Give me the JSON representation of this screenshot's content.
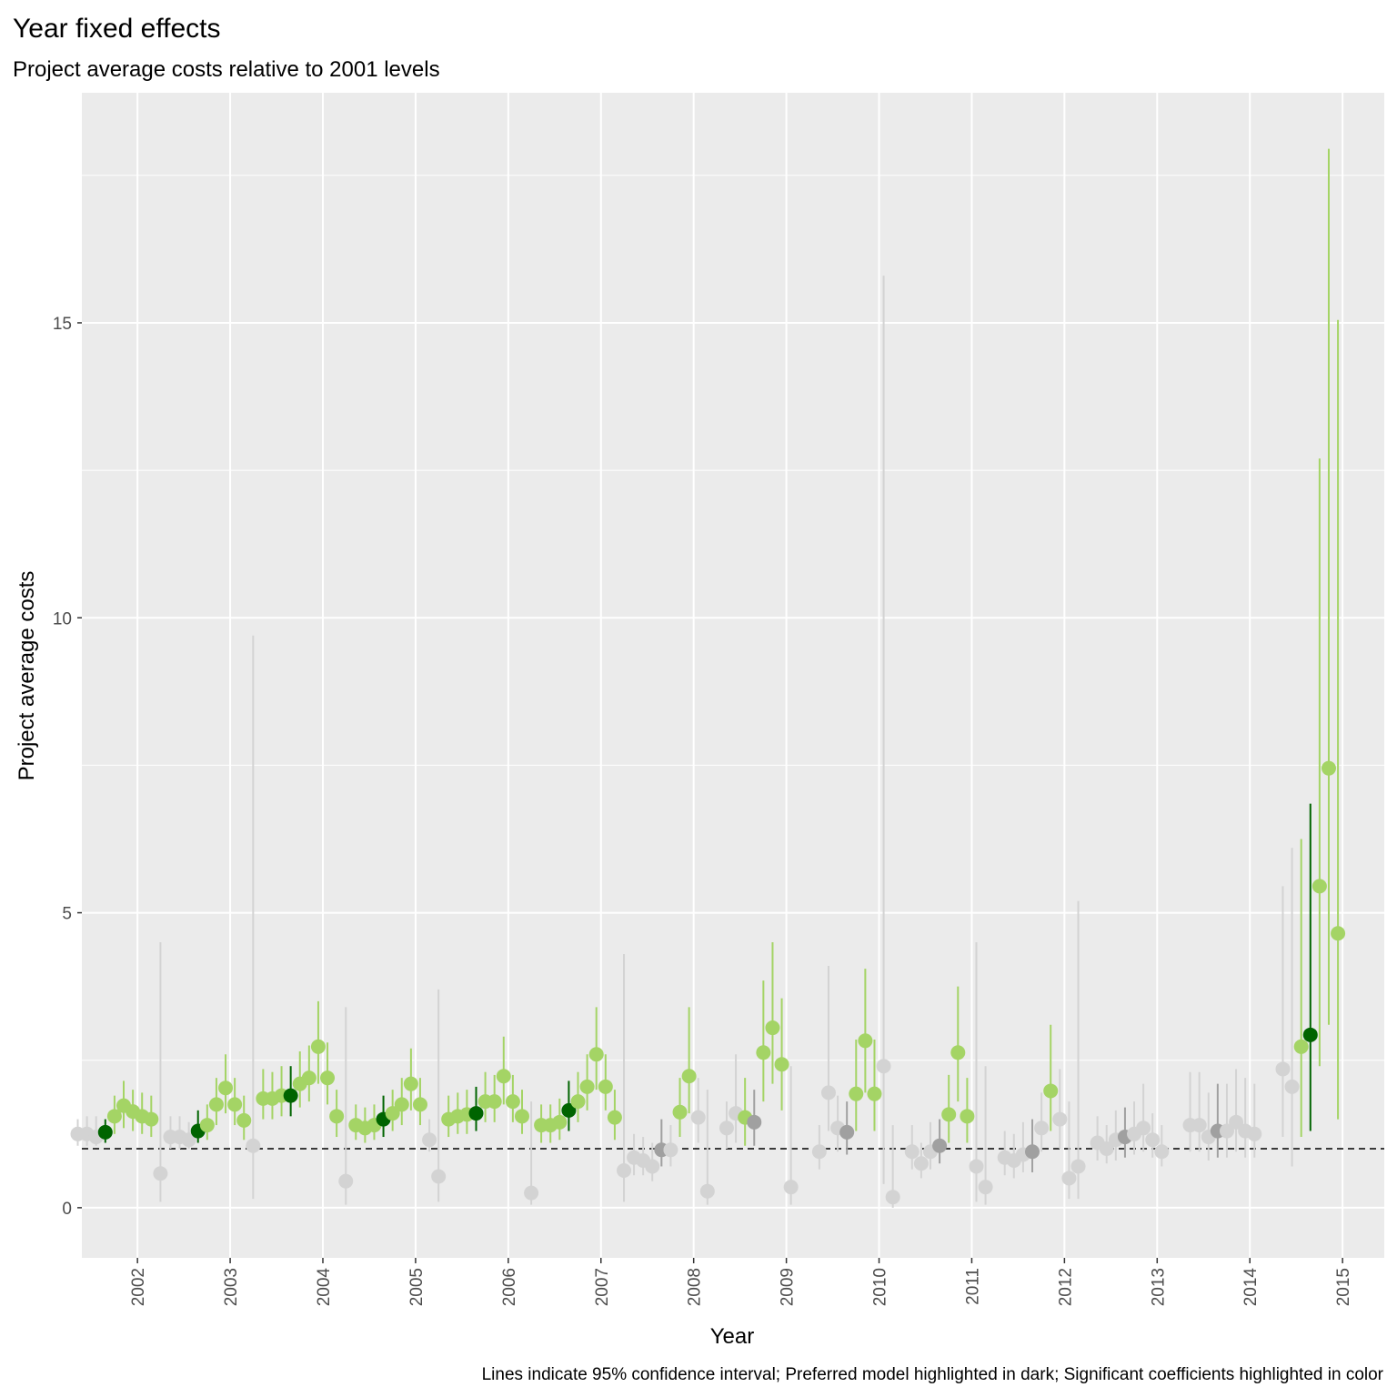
{
  "chart_data": {
    "type": "scatter",
    "title": "Year fixed effects",
    "subtitle": "Project average costs relative to 2001 levels",
    "xlabel": "Year",
    "ylabel": "Project average costs",
    "caption": "Lines indicate 95% confidence interval; Preferred model highlighted in dark; Significant coefficients highlighted in color",
    "categories": [
      "2002",
      "2003",
      "2004",
      "2005",
      "2006",
      "2007",
      "2008",
      "2009",
      "2010",
      "2011",
      "2012",
      "2013",
      "2014",
      "2015"
    ],
    "ylim": [
      -0.85,
      18.9
    ],
    "yticks": [
      0,
      5,
      10,
      15
    ],
    "y_minor_ticks": [
      2.5,
      7.5,
      12.5,
      17.5
    ],
    "reference_line": 1,
    "grid": true,
    "points_per_year": 14,
    "preferred_model_index": 3,
    "colors": {
      "panel": "#ebebeb",
      "grid": "#ffffff",
      "significant": "#a4d465",
      "preferred_significant": "#006400",
      "not_significant": "#d3d3d3",
      "preferred_not_significant": "#a0a0a0",
      "reference": "#000000"
    },
    "estimates": [
      {
        "year": "2002",
        "values": [
          [
            1.25,
            1.05,
            1.5,
            false
          ],
          [
            1.25,
            1.05,
            1.55,
            false
          ],
          [
            1.2,
            1.05,
            1.55,
            false
          ],
          [
            1.28,
            1.1,
            1.5,
            true
          ],
          [
            1.55,
            1.25,
            1.9,
            true
          ],
          [
            1.73,
            1.35,
            2.15,
            true
          ],
          [
            1.63,
            1.3,
            2.0,
            true
          ],
          [
            1.55,
            1.25,
            1.95,
            true
          ],
          [
            1.5,
            1.2,
            1.9,
            true
          ],
          [
            0.58,
            0.1,
            4.5,
            false
          ],
          null,
          null,
          null,
          null
        ]
      },
      {
        "year": "2003",
        "values": [
          [
            1.2,
            1.0,
            1.55,
            false
          ],
          [
            1.2,
            1.0,
            1.55,
            false
          ],
          [
            1.15,
            1.0,
            1.45,
            false
          ],
          [
            1.3,
            1.1,
            1.65,
            true
          ],
          [
            1.4,
            1.15,
            1.75,
            true
          ],
          [
            1.75,
            1.4,
            2.2,
            true
          ],
          [
            2.03,
            1.6,
            2.6,
            true
          ],
          [
            1.75,
            1.4,
            2.2,
            true
          ],
          [
            1.48,
            1.15,
            1.9,
            true
          ],
          [
            1.05,
            0.15,
            9.7,
            false
          ],
          null,
          null,
          null,
          null
        ]
      },
      {
        "year": "2004",
        "values": [
          [
            1.85,
            1.5,
            2.35,
            true
          ],
          [
            1.85,
            1.5,
            2.3,
            true
          ],
          [
            1.9,
            1.55,
            2.4,
            true
          ],
          [
            1.9,
            1.55,
            2.4,
            true
          ],
          [
            2.1,
            1.7,
            2.65,
            true
          ],
          [
            2.2,
            1.8,
            2.75,
            true
          ],
          [
            2.73,
            2.1,
            3.5,
            true
          ],
          [
            2.2,
            1.75,
            2.8,
            true
          ],
          [
            1.55,
            1.2,
            2.0,
            true
          ],
          [
            0.45,
            0.05,
            3.4,
            false
          ],
          null,
          null,
          null,
          null
        ]
      },
      {
        "year": "2005",
        "values": [
          [
            1.4,
            1.15,
            1.75,
            true
          ],
          [
            1.35,
            1.1,
            1.7,
            true
          ],
          [
            1.4,
            1.15,
            1.75,
            true
          ],
          [
            1.5,
            1.2,
            1.9,
            true
          ],
          [
            1.6,
            1.3,
            2.0,
            true
          ],
          [
            1.75,
            1.4,
            2.2,
            true
          ],
          [
            2.1,
            1.65,
            2.7,
            true
          ],
          [
            1.75,
            1.4,
            2.2,
            true
          ],
          [
            1.15,
            0.95,
            1.5,
            false
          ],
          [
            0.53,
            0.1,
            3.7,
            false
          ],
          null,
          null,
          null,
          null
        ]
      },
      {
        "year": "2006",
        "values": [
          [
            1.5,
            1.2,
            1.9,
            true
          ],
          [
            1.55,
            1.25,
            1.95,
            true
          ],
          [
            1.58,
            1.25,
            2.0,
            true
          ],
          [
            1.6,
            1.3,
            2.05,
            true
          ],
          [
            1.8,
            1.45,
            2.3,
            true
          ],
          [
            1.8,
            1.45,
            2.25,
            true
          ],
          [
            2.23,
            1.75,
            2.9,
            true
          ],
          [
            1.8,
            1.45,
            2.25,
            true
          ],
          [
            1.55,
            1.25,
            2.0,
            true
          ],
          [
            0.25,
            0.05,
            1.8,
            false
          ],
          null,
          null,
          null,
          null
        ]
      },
      {
        "year": "2007",
        "values": [
          [
            1.4,
            1.1,
            1.75,
            true
          ],
          [
            1.4,
            1.1,
            1.75,
            true
          ],
          [
            1.45,
            1.15,
            1.85,
            true
          ],
          [
            1.65,
            1.3,
            2.15,
            true
          ],
          [
            1.8,
            1.45,
            2.3,
            true
          ],
          [
            2.05,
            1.65,
            2.6,
            true
          ],
          [
            2.6,
            2.0,
            3.4,
            true
          ],
          [
            2.05,
            1.65,
            2.6,
            true
          ],
          [
            1.53,
            1.15,
            2.0,
            true
          ],
          [
            0.63,
            0.1,
            4.3,
            false
          ],
          null,
          null,
          null,
          null
        ]
      },
      {
        "year": "2008",
        "values": [
          [
            0.85,
            0.55,
            1.25,
            false
          ],
          [
            0.8,
            0.55,
            1.2,
            false
          ],
          [
            0.7,
            0.45,
            1.1,
            false
          ],
          [
            0.98,
            0.7,
            1.5,
            false
          ],
          [
            0.98,
            0.7,
            1.4,
            false
          ],
          [
            1.62,
            1.2,
            2.2,
            true
          ],
          [
            2.23,
            1.6,
            3.4,
            true
          ],
          [
            1.53,
            1.1,
            2.2,
            false
          ],
          [
            0.28,
            0.05,
            2.0,
            false
          ],
          null,
          null,
          null,
          null,
          null
        ]
      },
      {
        "year": "2009",
        "values": [
          [
            1.35,
            1.0,
            1.8,
            false
          ],
          [
            1.6,
            1.1,
            2.6,
            false
          ],
          [
            1.53,
            1.05,
            2.2,
            true
          ],
          [
            1.45,
            1.05,
            2.0,
            false
          ],
          [
            2.63,
            1.8,
            3.85,
            true
          ],
          [
            3.05,
            2.1,
            4.5,
            true
          ],
          [
            2.43,
            1.65,
            3.55,
            true
          ],
          [
            0.35,
            0.05,
            2.4,
            false
          ],
          null,
          null,
          null,
          null,
          null,
          null
        ]
      },
      {
        "year": "2010",
        "values": [
          [
            0.95,
            0.65,
            1.4,
            false
          ],
          [
            1.95,
            1.3,
            4.1,
            false
          ],
          [
            1.35,
            0.95,
            1.9,
            false
          ],
          [
            1.28,
            0.9,
            1.8,
            false
          ],
          [
            1.93,
            1.3,
            2.85,
            true
          ],
          [
            2.83,
            1.95,
            4.05,
            true
          ],
          [
            1.93,
            1.3,
            2.85,
            true
          ],
          [
            2.4,
            0.4,
            15.8,
            false
          ],
          [
            0.18,
            0.0,
            1.4,
            false
          ],
          null,
          null,
          null,
          null,
          null
        ]
      },
      {
        "year": "2011",
        "values": [
          [
            0.95,
            0.65,
            1.4,
            false
          ],
          [
            0.75,
            0.5,
            1.1,
            false
          ],
          [
            0.95,
            0.65,
            1.45,
            false
          ],
          [
            1.05,
            0.75,
            1.5,
            false
          ],
          [
            1.58,
            1.1,
            2.25,
            true
          ],
          [
            2.63,
            1.8,
            3.75,
            true
          ],
          [
            1.55,
            1.1,
            2.2,
            true
          ],
          [
            0.7,
            0.1,
            4.5,
            false
          ],
          [
            0.35,
            0.05,
            2.4,
            false
          ],
          null,
          null,
          null,
          null,
          null
        ]
      },
      {
        "year": "2012",
        "values": [
          [
            0.85,
            0.55,
            1.3,
            false
          ],
          [
            0.8,
            0.5,
            1.25,
            false
          ],
          [
            0.9,
            0.6,
            1.45,
            false
          ],
          [
            0.95,
            0.6,
            1.5,
            false
          ],
          [
            1.35,
            0.95,
            1.95,
            false
          ],
          [
            1.98,
            1.3,
            3.1,
            true
          ],
          [
            1.5,
            1.0,
            2.35,
            false
          ],
          [
            0.5,
            0.15,
            1.8,
            false
          ],
          [
            0.7,
            0.15,
            5.2,
            false
          ],
          null,
          null,
          null,
          null,
          null
        ]
      },
      {
        "year": "2013",
        "values": [
          [
            1.1,
            0.8,
            1.55,
            false
          ],
          [
            1.0,
            0.75,
            1.4,
            false
          ],
          [
            1.15,
            0.8,
            1.65,
            false
          ],
          [
            1.2,
            0.85,
            1.7,
            false
          ],
          [
            1.25,
            0.9,
            1.8,
            false
          ],
          [
            1.35,
            0.95,
            2.1,
            false
          ],
          [
            1.15,
            0.85,
            1.6,
            false
          ],
          [
            0.95,
            0.7,
            1.4,
            false
          ],
          null,
          null,
          null,
          null,
          null,
          null
        ]
      },
      {
        "year": "2014",
        "values": [
          [
            1.4,
            0.95,
            2.3,
            false
          ],
          [
            1.4,
            0.95,
            2.3,
            false
          ],
          [
            1.2,
            0.8,
            1.95,
            false
          ],
          [
            1.3,
            0.85,
            2.1,
            false
          ],
          [
            1.3,
            0.85,
            2.1,
            false
          ],
          [
            1.45,
            0.95,
            2.35,
            false
          ],
          [
            1.3,
            0.85,
            2.2,
            false
          ],
          [
            1.25,
            0.85,
            2.1,
            false
          ],
          null,
          null,
          null,
          null,
          null,
          null
        ]
      },
      {
        "year": "2015",
        "values": [
          [
            2.35,
            1.2,
            5.45,
            false
          ],
          [
            2.05,
            0.7,
            6.1,
            false
          ],
          [
            2.73,
            1.2,
            6.25,
            true
          ],
          [
            2.93,
            1.3,
            6.85,
            true
          ],
          [
            5.45,
            2.4,
            12.7,
            true
          ],
          [
            7.45,
            3.1,
            17.95,
            true
          ],
          [
            4.65,
            1.5,
            15.05,
            true
          ],
          null,
          null,
          null,
          null,
          null,
          null,
          null
        ]
      }
    ]
  }
}
